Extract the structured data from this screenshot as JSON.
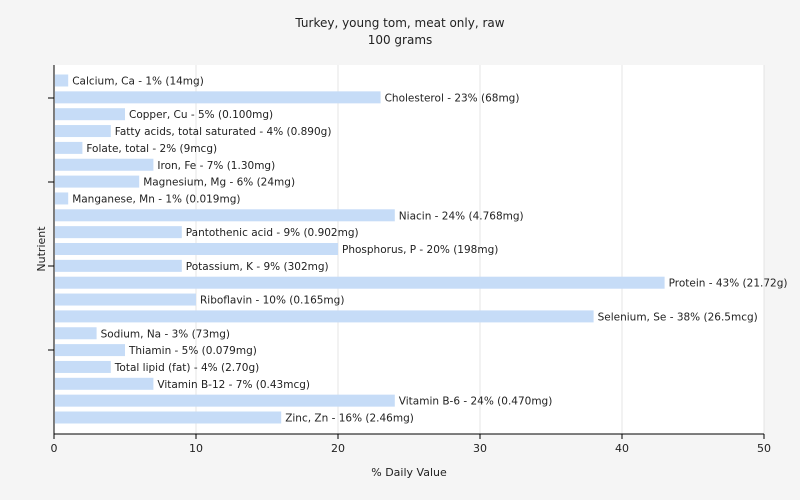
{
  "chart_data": {
    "type": "bar",
    "orientation": "horizontal",
    "title": "Turkey, young tom, meat only, raw",
    "subtitle": "100 grams",
    "xlabel": "% Daily Value",
    "ylabel": "Nutrient",
    "xlim": [
      0,
      50
    ],
    "xticks": [
      "0",
      "10",
      "20",
      "30",
      "40",
      "50"
    ],
    "grid": true,
    "bar_color": "#c6dcf7",
    "categories": [
      "Calcium, Ca",
      "Cholesterol",
      "Copper, Cu",
      "Fatty acids, total saturated",
      "Folate, total",
      "Iron, Fe",
      "Magnesium, Mg",
      "Manganese, Mn",
      "Niacin",
      "Pantothenic acid",
      "Phosphorus, P",
      "Potassium, K",
      "Protein",
      "Riboflavin",
      "Selenium, Se",
      "Sodium, Na",
      "Thiamin",
      "Total lipid (fat)",
      "Vitamin B-12",
      "Vitamin B-6",
      "Zinc, Zn"
    ],
    "values": [
      1,
      23,
      5,
      4,
      2,
      7,
      6,
      1,
      24,
      9,
      20,
      9,
      43,
      10,
      38,
      3,
      5,
      4,
      7,
      24,
      16
    ],
    "labels": [
      "Calcium, Ca - 1% (14mg)",
      "Cholesterol - 23% (68mg)",
      "Copper, Cu - 5% (0.100mg)",
      "Fatty acids, total saturated - 4% (0.890g)",
      "Folate, total - 2% (9mcg)",
      "Iron, Fe - 7% (1.30mg)",
      "Magnesium, Mg - 6% (24mg)",
      "Manganese, Mn - 1% (0.019mg)",
      "Niacin - 24% (4.768mg)",
      "Pantothenic acid - 9% (0.902mg)",
      "Phosphorus, P - 20% (198mg)",
      "Potassium, K - 9% (302mg)",
      "Protein - 43% (21.72g)",
      "Riboflavin - 10% (0.165mg)",
      "Selenium, Se - 38% (26.5mcg)",
      "Sodium, Na - 3% (73mg)",
      "Thiamin - 5% (0.079mg)",
      "Total lipid (fat) - 4% (2.70g)",
      "Vitamin B-12 - 7% (0.43mcg)",
      "Vitamin B-6 - 24% (0.470mg)",
      "Zinc, Zn - 16% (2.46mg)"
    ]
  }
}
